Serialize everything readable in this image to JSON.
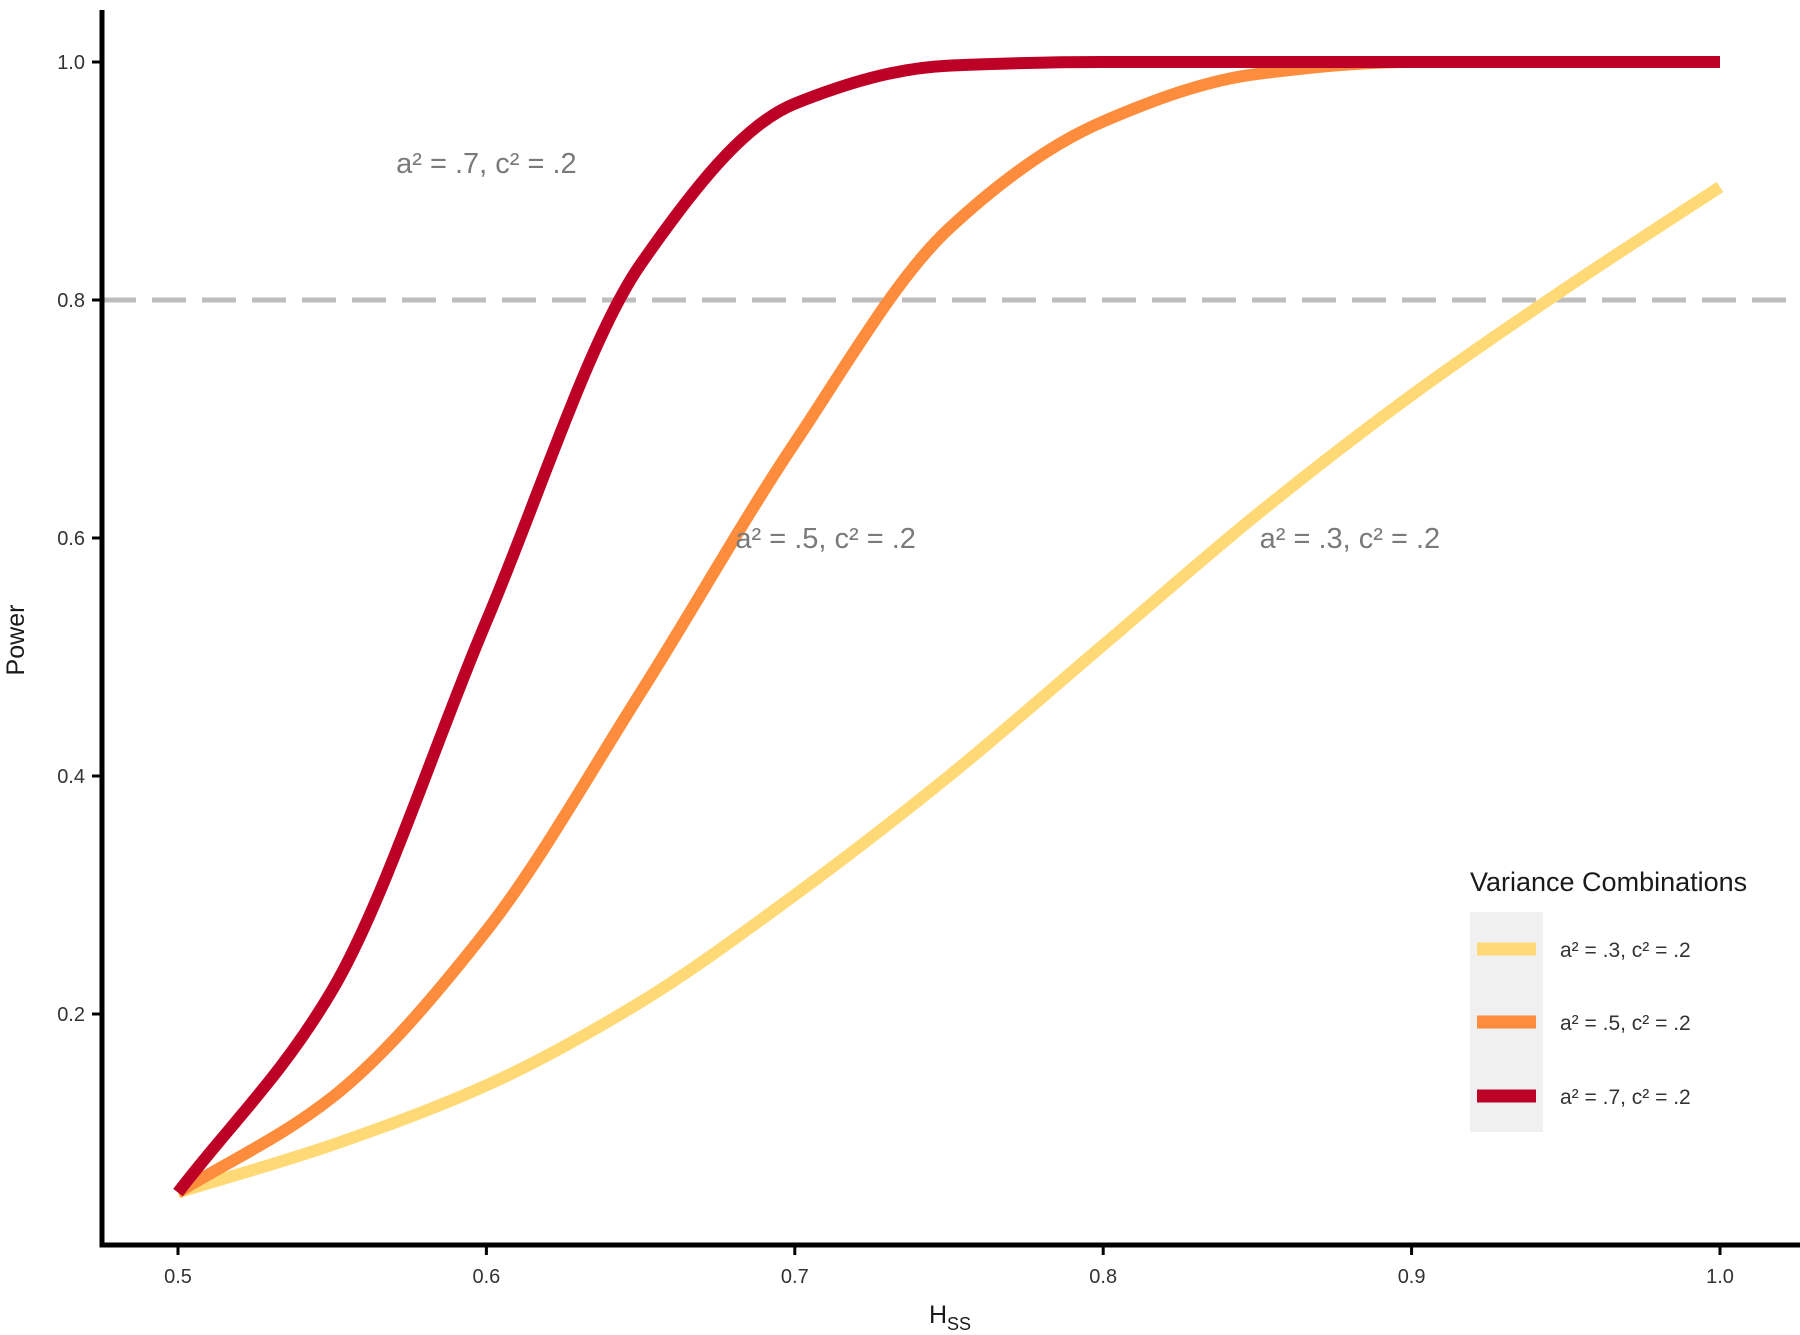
{
  "chart_data": {
    "type": "line",
    "xlabel": "H",
    "xlabel_subscript": "SS",
    "ylabel": "Power",
    "xlim": [
      0.475,
      1.025
    ],
    "ylim": [
      0.0,
      1.05
    ],
    "x_ticks": [
      0.5,
      0.6,
      0.7,
      0.8,
      0.9,
      1.0
    ],
    "x_tick_labels": [
      "0.5",
      "0.6",
      "0.7",
      "0.8",
      "0.9",
      "1.0"
    ],
    "y_ticks": [
      0.2,
      0.4,
      0.6,
      0.8,
      1.0
    ],
    "y_tick_labels": [
      "0.2",
      "0.4",
      "0.6",
      "0.8",
      "1.0"
    ],
    "grid": false,
    "reference_line": {
      "y": 0.8,
      "style": "dashed",
      "color": "#bdbdbd"
    },
    "series": [
      {
        "name": "a² = .3, c² = .2",
        "color": "#fed976",
        "x": [
          0.5,
          0.55,
          0.6,
          0.65,
          0.7,
          0.75,
          0.8,
          0.85,
          0.9,
          0.95,
          1.0
        ],
        "y": [
          0.05,
          0.09,
          0.14,
          0.21,
          0.3,
          0.4,
          0.51,
          0.62,
          0.72,
          0.81,
          0.895
        ]
      },
      {
        "name": "a² = .5, c² = .2",
        "color": "#fd8d3c",
        "x": [
          0.5,
          0.55,
          0.6,
          0.65,
          0.7,
          0.75,
          0.8,
          0.85,
          0.9,
          0.95,
          1.0
        ],
        "y": [
          0.05,
          0.13,
          0.27,
          0.47,
          0.68,
          0.86,
          0.95,
          0.99,
          1.0,
          1.0,
          1.0
        ]
      },
      {
        "name": "a² = .7, c² = .2",
        "color": "#bd0026",
        "x": [
          0.5,
          0.55,
          0.6,
          0.65,
          0.7,
          0.75,
          0.8,
          0.85,
          0.9,
          0.95,
          1.0
        ],
        "y": [
          0.05,
          0.22,
          0.53,
          0.83,
          0.965,
          0.997,
          1.0,
          1.0,
          1.0,
          1.0,
          1.0
        ]
      }
    ],
    "annotations": [
      {
        "text": "a² = .7, c² = .2",
        "x": 0.6,
        "y": 0.915
      },
      {
        "text": "a² = .5, c² = .2",
        "x": 0.71,
        "y": 0.6
      },
      {
        "text": "a² = .3, c² = .2",
        "x": 0.88,
        "y": 0.6
      }
    ],
    "legend": {
      "title": "Variance Combinations",
      "position": "right",
      "entries": [
        "a² = .3, c² = .2",
        "a² = .5, c² = .2",
        "a² = .7, c² = .2"
      ]
    }
  }
}
